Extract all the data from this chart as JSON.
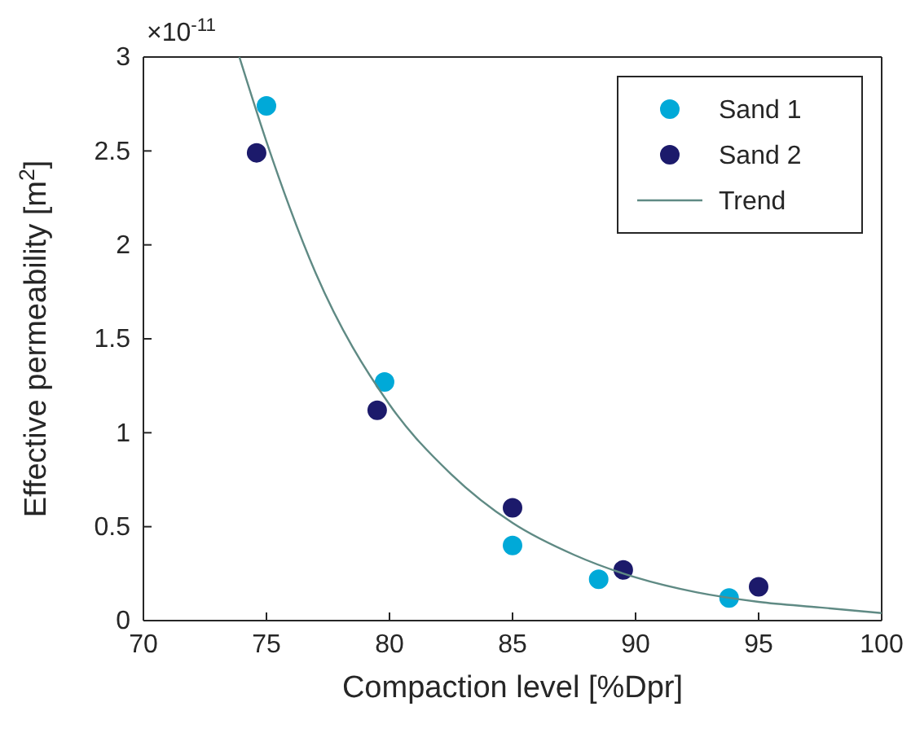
{
  "chart_data": {
    "type": "scatter",
    "xlabel": "Compaction level [%Dpr]",
    "ylabel": "Effective permeability [m$^{2}$]",
    "annotations": [
      "×10$^{-11}$"
    ],
    "xlim": [
      70,
      100
    ],
    "xticks": [
      70,
      75,
      80,
      85,
      90,
      95,
      100
    ],
    "ylim": [
      0,
      3
    ],
    "yticks": [
      0,
      0.5,
      1,
      1.5,
      2,
      2.5,
      3
    ],
    "grid": false,
    "legend": "top right",
    "series": [
      {
        "name": "Sand 1",
        "color": "#00a9d8",
        "marker": "circle",
        "x": [
          75,
          79.8,
          85,
          88.5,
          93.8
        ],
        "values": [
          2.74,
          1.27,
          0.4,
          0.22,
          0.12
        ]
      },
      {
        "name": "Sand 2",
        "color": "#1c1a6b",
        "marker": "circle",
        "x": [
          74.6,
          79.5,
          85,
          89.5,
          95
        ],
        "values": [
          2.49,
          1.12,
          0.6,
          0.27,
          0.18
        ]
      },
      {
        "name": "Trend",
        "type": "line",
        "color": "#5f8a84",
        "x": [
          73.9,
          75,
          77,
          80,
          82.5,
          85,
          87.5,
          90,
          92.5,
          95,
          97.5,
          100
        ],
        "values": [
          3.0,
          2.55,
          1.85,
          1.15,
          0.78,
          0.52,
          0.35,
          0.23,
          0.15,
          0.1,
          0.07,
          0.04
        ]
      }
    ]
  }
}
